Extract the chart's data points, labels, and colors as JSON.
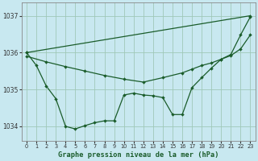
{
  "title": "Graphe pression niveau de la mer (hPa)",
  "background_color": "#c8e8f0",
  "grid_color": "#a0c8b8",
  "line_color": "#1a5c2a",
  "x_ticks": [
    0,
    1,
    2,
    3,
    4,
    5,
    6,
    7,
    8,
    9,
    10,
    11,
    12,
    13,
    14,
    15,
    16,
    17,
    18,
    19,
    20,
    21,
    22,
    23
  ],
  "y_ticks": [
    1034,
    1035,
    1036,
    1037
  ],
  "ylim": [
    1033.6,
    1037.35
  ],
  "xlim": [
    -0.5,
    23.5
  ],
  "line1_x": [
    0,
    1,
    2,
    3,
    4,
    5,
    6,
    7,
    8,
    9,
    10,
    11,
    12,
    13,
    14,
    15,
    16,
    17,
    18,
    19,
    20,
    21,
    22,
    23
  ],
  "line1_y": [
    1036.0,
    1035.65,
    1035.1,
    1034.75,
    1034.0,
    1033.93,
    1034.02,
    1034.1,
    1034.15,
    1034.15,
    1034.85,
    1034.9,
    1034.85,
    1034.83,
    1034.78,
    1034.32,
    1034.32,
    1035.05,
    1035.32,
    1035.58,
    1035.82,
    1035.95,
    1036.48,
    1036.97
  ],
  "line2_x": [
    0,
    23
  ],
  "line2_y": [
    1036.0,
    1037.0
  ],
  "line3_x": [
    0,
    2,
    4,
    6,
    8,
    10,
    12,
    14,
    16,
    17,
    18,
    19,
    20,
    21,
    22,
    23
  ],
  "line3_y": [
    1035.9,
    1035.75,
    1035.62,
    1035.5,
    1035.38,
    1035.28,
    1035.2,
    1035.32,
    1035.45,
    1035.55,
    1035.65,
    1035.72,
    1035.82,
    1035.92,
    1036.1,
    1036.48
  ]
}
